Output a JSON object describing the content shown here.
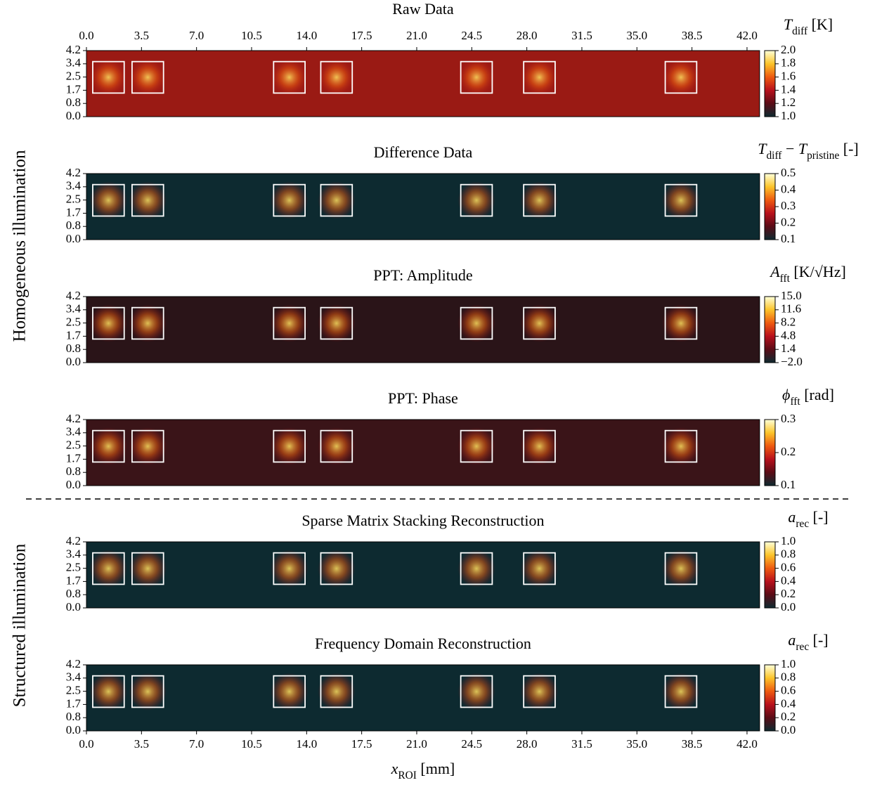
{
  "figure": {
    "row_labels": [
      "Homogeneous illumination",
      "Structured illumination"
    ]
  },
  "chart_data": [
    {
      "type": "heatmap",
      "title": "Raw Data",
      "background": "#9a1a14",
      "xlim": [
        0,
        42.8
      ],
      "xaxis_position": "top",
      "xticks": [
        {
          "value": 0,
          "label": "0.0"
        },
        3.5,
        {
          "value": 7,
          "label": "7.0"
        },
        10.5,
        {
          "value": 14,
          "label": "14.0"
        },
        17.5,
        {
          "value": 21,
          "label": "21.0"
        },
        24.5,
        {
          "value": 28,
          "label": "28.0"
        },
        31.5,
        {
          "value": 35,
          "label": "35.0"
        },
        38.5,
        {
          "value": 42,
          "label": "42.0"
        }
      ],
      "ylim": [
        0,
        4.2
      ],
      "yticks": [
        {
          "value": 0,
          "label": "0.0"
        },
        {
          "value": 0.84,
          "label": "0.8"
        },
        {
          "value": 1.68,
          "label": "1.7"
        },
        {
          "value": 2.52,
          "label": "2.5"
        },
        {
          "value": 3.36,
          "label": "3.4"
        },
        4.2
      ],
      "colorbar": {
        "label": [
          {
            "text": "T",
            "italic": true
          },
          {
            "text": "diff",
            "sub": true
          },
          {
            "text": " [K]"
          }
        ],
        "lim": [
          1.0,
          2.0
        ],
        "ticks": [
          {
            "value": 1.0,
            "label": "1.0"
          },
          1.2,
          1.4,
          1.6,
          1.8,
          {
            "value": 2.0,
            "label": "2.0"
          }
        ]
      },
      "boxes": [
        {
          "x": [
            0.4,
            2.4
          ],
          "y": [
            1.5,
            3.5
          ]
        },
        {
          "x": [
            2.9,
            4.9
          ],
          "y": [
            1.5,
            3.5
          ]
        },
        {
          "x": [
            11.9,
            13.9
          ],
          "y": [
            1.5,
            3.5
          ]
        },
        {
          "x": [
            14.9,
            16.9
          ],
          "y": [
            1.5,
            3.5
          ]
        },
        {
          "x": [
            23.8,
            25.8
          ],
          "y": [
            1.5,
            3.5
          ]
        },
        {
          "x": [
            27.8,
            29.8
          ],
          "y": [
            1.5,
            3.5
          ]
        },
        {
          "x": [
            36.8,
            38.8
          ],
          "y": [
            1.5,
            3.5
          ]
        }
      ]
    },
    {
      "type": "heatmap",
      "title": "Difference Data",
      "background": "#0d2a30",
      "xlim": [
        0,
        42.8
      ],
      "ylim": [
        0,
        4.2
      ],
      "yticks": [
        {
          "value": 0,
          "label": "0.0"
        },
        {
          "value": 0.84,
          "label": "0.8"
        },
        {
          "value": 1.68,
          "label": "1.7"
        },
        {
          "value": 2.52,
          "label": "2.5"
        },
        {
          "value": 3.36,
          "label": "3.4"
        },
        4.2
      ],
      "colorbar": {
        "label": [
          {
            "text": "T",
            "italic": true
          },
          {
            "text": "diff",
            "sub": true
          },
          {
            "text": " − "
          },
          {
            "text": "T",
            "italic": true
          },
          {
            "text": "pristine",
            "sub": true
          },
          {
            "text": " [-]"
          }
        ],
        "lim": [
          0.1,
          0.5
        ],
        "ticks": [
          0.1,
          0.2,
          0.3,
          0.4,
          0.5
        ]
      },
      "boxes": [
        {
          "x": [
            0.4,
            2.4
          ],
          "y": [
            1.5,
            3.5
          ]
        },
        {
          "x": [
            2.9,
            4.9
          ],
          "y": [
            1.5,
            3.5
          ]
        },
        {
          "x": [
            11.9,
            13.9
          ],
          "y": [
            1.5,
            3.5
          ]
        },
        {
          "x": [
            14.9,
            16.9
          ],
          "y": [
            1.5,
            3.5
          ]
        },
        {
          "x": [
            23.8,
            25.8
          ],
          "y": [
            1.5,
            3.5
          ]
        },
        {
          "x": [
            27.8,
            29.8
          ],
          "y": [
            1.5,
            3.5
          ]
        },
        {
          "x": [
            36.8,
            38.8
          ],
          "y": [
            1.5,
            3.5
          ]
        }
      ]
    },
    {
      "type": "heatmap",
      "title": "PPT: Amplitude",
      "background": "#2a1418",
      "xlim": [
        0,
        42.8
      ],
      "ylim": [
        0,
        4.2
      ],
      "yticks": [
        {
          "value": 0,
          "label": "0.0"
        },
        {
          "value": 0.84,
          "label": "0.8"
        },
        {
          "value": 1.68,
          "label": "1.7"
        },
        {
          "value": 2.52,
          "label": "2.5"
        },
        {
          "value": 3.36,
          "label": "3.4"
        },
        4.2
      ],
      "colorbar": {
        "label": [
          {
            "text": "A",
            "italic": true
          },
          {
            "text": "fft",
            "sub": true
          },
          {
            "text": " [K/√Hz]"
          }
        ],
        "lim": [
          -2.0,
          15.0
        ],
        "ticks": [
          {
            "value": -2.0,
            "label": "−2.0"
          },
          1.4,
          4.8,
          8.2,
          11.6,
          {
            "value": 15.0,
            "label": "15.0"
          }
        ]
      },
      "boxes": [
        {
          "x": [
            0.4,
            2.4
          ],
          "y": [
            1.5,
            3.5
          ]
        },
        {
          "x": [
            2.9,
            4.9
          ],
          "y": [
            1.5,
            3.5
          ]
        },
        {
          "x": [
            11.9,
            13.9
          ],
          "y": [
            1.5,
            3.5
          ]
        },
        {
          "x": [
            14.9,
            16.9
          ],
          "y": [
            1.5,
            3.5
          ]
        },
        {
          "x": [
            23.8,
            25.8
          ],
          "y": [
            1.5,
            3.5
          ]
        },
        {
          "x": [
            27.8,
            29.8
          ],
          "y": [
            1.5,
            3.5
          ]
        },
        {
          "x": [
            36.8,
            38.8
          ],
          "y": [
            1.5,
            3.5
          ]
        }
      ]
    },
    {
      "type": "heatmap",
      "title": "PPT: Phase",
      "background": "#3a1418",
      "xlim": [
        0,
        42.8
      ],
      "ylim": [
        0,
        4.2
      ],
      "yticks": [
        {
          "value": 0,
          "label": "0.0"
        },
        {
          "value": 0.84,
          "label": "0.8"
        },
        {
          "value": 1.68,
          "label": "1.7"
        },
        {
          "value": 2.52,
          "label": "2.5"
        },
        {
          "value": 3.36,
          "label": "3.4"
        },
        4.2
      ],
      "colorbar": {
        "label": [
          {
            "text": "ϕ",
            "italic": true
          },
          {
            "text": "fft",
            "sub": true
          },
          {
            "text": " [rad]"
          }
        ],
        "lim": [
          0.1,
          0.3
        ],
        "ticks": [
          0.1,
          0.2,
          0.3
        ]
      },
      "boxes": [
        {
          "x": [
            0.4,
            2.4
          ],
          "y": [
            1.5,
            3.5
          ]
        },
        {
          "x": [
            2.9,
            4.9
          ],
          "y": [
            1.5,
            3.5
          ]
        },
        {
          "x": [
            11.9,
            13.9
          ],
          "y": [
            1.5,
            3.5
          ]
        },
        {
          "x": [
            14.9,
            16.9
          ],
          "y": [
            1.5,
            3.5
          ]
        },
        {
          "x": [
            23.8,
            25.8
          ],
          "y": [
            1.5,
            3.5
          ]
        },
        {
          "x": [
            27.8,
            29.8
          ],
          "y": [
            1.5,
            3.5
          ]
        },
        {
          "x": [
            36.8,
            38.8
          ],
          "y": [
            1.5,
            3.5
          ]
        }
      ]
    },
    {
      "type": "heatmap",
      "title": "Sparse Matrix Stacking Reconstruction",
      "background": "#0d2a30",
      "xlim": [
        0,
        42.8
      ],
      "ylim": [
        0,
        4.2
      ],
      "yticks": [
        {
          "value": 0,
          "label": "0.0"
        },
        {
          "value": 0.84,
          "label": "0.8"
        },
        {
          "value": 1.68,
          "label": "1.7"
        },
        {
          "value": 2.52,
          "label": "2.5"
        },
        {
          "value": 3.36,
          "label": "3.4"
        },
        4.2
      ],
      "colorbar": {
        "label": [
          {
            "text": "a",
            "italic": true
          },
          {
            "text": "rec",
            "sub": true
          },
          {
            "text": " [-]"
          }
        ],
        "lim": [
          0.0,
          1.0
        ],
        "ticks": [
          {
            "value": 0.0,
            "label": "0.0"
          },
          0.2,
          0.4,
          0.6,
          0.8,
          {
            "value": 1.0,
            "label": "1.0"
          }
        ]
      },
      "boxes": [
        {
          "x": [
            0.4,
            2.4
          ],
          "y": [
            1.5,
            3.5
          ]
        },
        {
          "x": [
            2.9,
            4.9
          ],
          "y": [
            1.5,
            3.5
          ]
        },
        {
          "x": [
            11.9,
            13.9
          ],
          "y": [
            1.5,
            3.5
          ]
        },
        {
          "x": [
            14.9,
            16.9
          ],
          "y": [
            1.5,
            3.5
          ]
        },
        {
          "x": [
            23.8,
            25.8
          ],
          "y": [
            1.5,
            3.5
          ]
        },
        {
          "x": [
            27.8,
            29.8
          ],
          "y": [
            1.5,
            3.5
          ]
        },
        {
          "x": [
            36.8,
            38.8
          ],
          "y": [
            1.5,
            3.5
          ]
        }
      ]
    },
    {
      "type": "heatmap",
      "title": "Frequency Domain Reconstruction",
      "background": "#0d2a30",
      "xlim": [
        0,
        42.8
      ],
      "xaxis_position": "bottom",
      "xticks": [
        {
          "value": 0,
          "label": "0.0"
        },
        3.5,
        {
          "value": 7,
          "label": "7.0"
        },
        10.5,
        {
          "value": 14,
          "label": "14.0"
        },
        17.5,
        {
          "value": 21,
          "label": "21.0"
        },
        24.5,
        {
          "value": 28,
          "label": "28.0"
        },
        31.5,
        {
          "value": 35,
          "label": "35.0"
        },
        38.5,
        {
          "value": 42,
          "label": "42.0"
        }
      ],
      "xlabel": [
        {
          "text": "x",
          "italic": true
        },
        {
          "text": "ROI",
          "sub": true
        },
        {
          "text": " [mm]"
        }
      ],
      "ylim": [
        0,
        4.2
      ],
      "yticks": [
        {
          "value": 0,
          "label": "0.0"
        },
        {
          "value": 0.84,
          "label": "0.8"
        },
        {
          "value": 1.68,
          "label": "1.7"
        },
        {
          "value": 2.52,
          "label": "2.5"
        },
        {
          "value": 3.36,
          "label": "3.4"
        },
        4.2
      ],
      "colorbar": {
        "label": [
          {
            "text": "a",
            "italic": true
          },
          {
            "text": "rec",
            "sub": true
          },
          {
            "text": " [-]"
          }
        ],
        "lim": [
          0.0,
          1.0
        ],
        "ticks": [
          {
            "value": 0.0,
            "label": "0.0"
          },
          0.2,
          0.4,
          0.6,
          0.8,
          {
            "value": 1.0,
            "label": "1.0"
          }
        ]
      },
      "boxes": [
        {
          "x": [
            0.4,
            2.4
          ],
          "y": [
            1.5,
            3.5
          ]
        },
        {
          "x": [
            2.9,
            4.9
          ],
          "y": [
            1.5,
            3.5
          ]
        },
        {
          "x": [
            11.9,
            13.9
          ],
          "y": [
            1.5,
            3.5
          ]
        },
        {
          "x": [
            14.9,
            16.9
          ],
          "y": [
            1.5,
            3.5
          ]
        },
        {
          "x": [
            23.8,
            25.8
          ],
          "y": [
            1.5,
            3.5
          ]
        },
        {
          "x": [
            27.8,
            29.8
          ],
          "y": [
            1.5,
            3.5
          ]
        },
        {
          "x": [
            36.8,
            38.8
          ],
          "y": [
            1.5,
            3.5
          ]
        }
      ]
    }
  ],
  "colormap": [
    "#0d2a30",
    "#5a0c16",
    "#b8101c",
    "#ee5a10",
    "#fcc42a",
    "#ffffd8"
  ]
}
